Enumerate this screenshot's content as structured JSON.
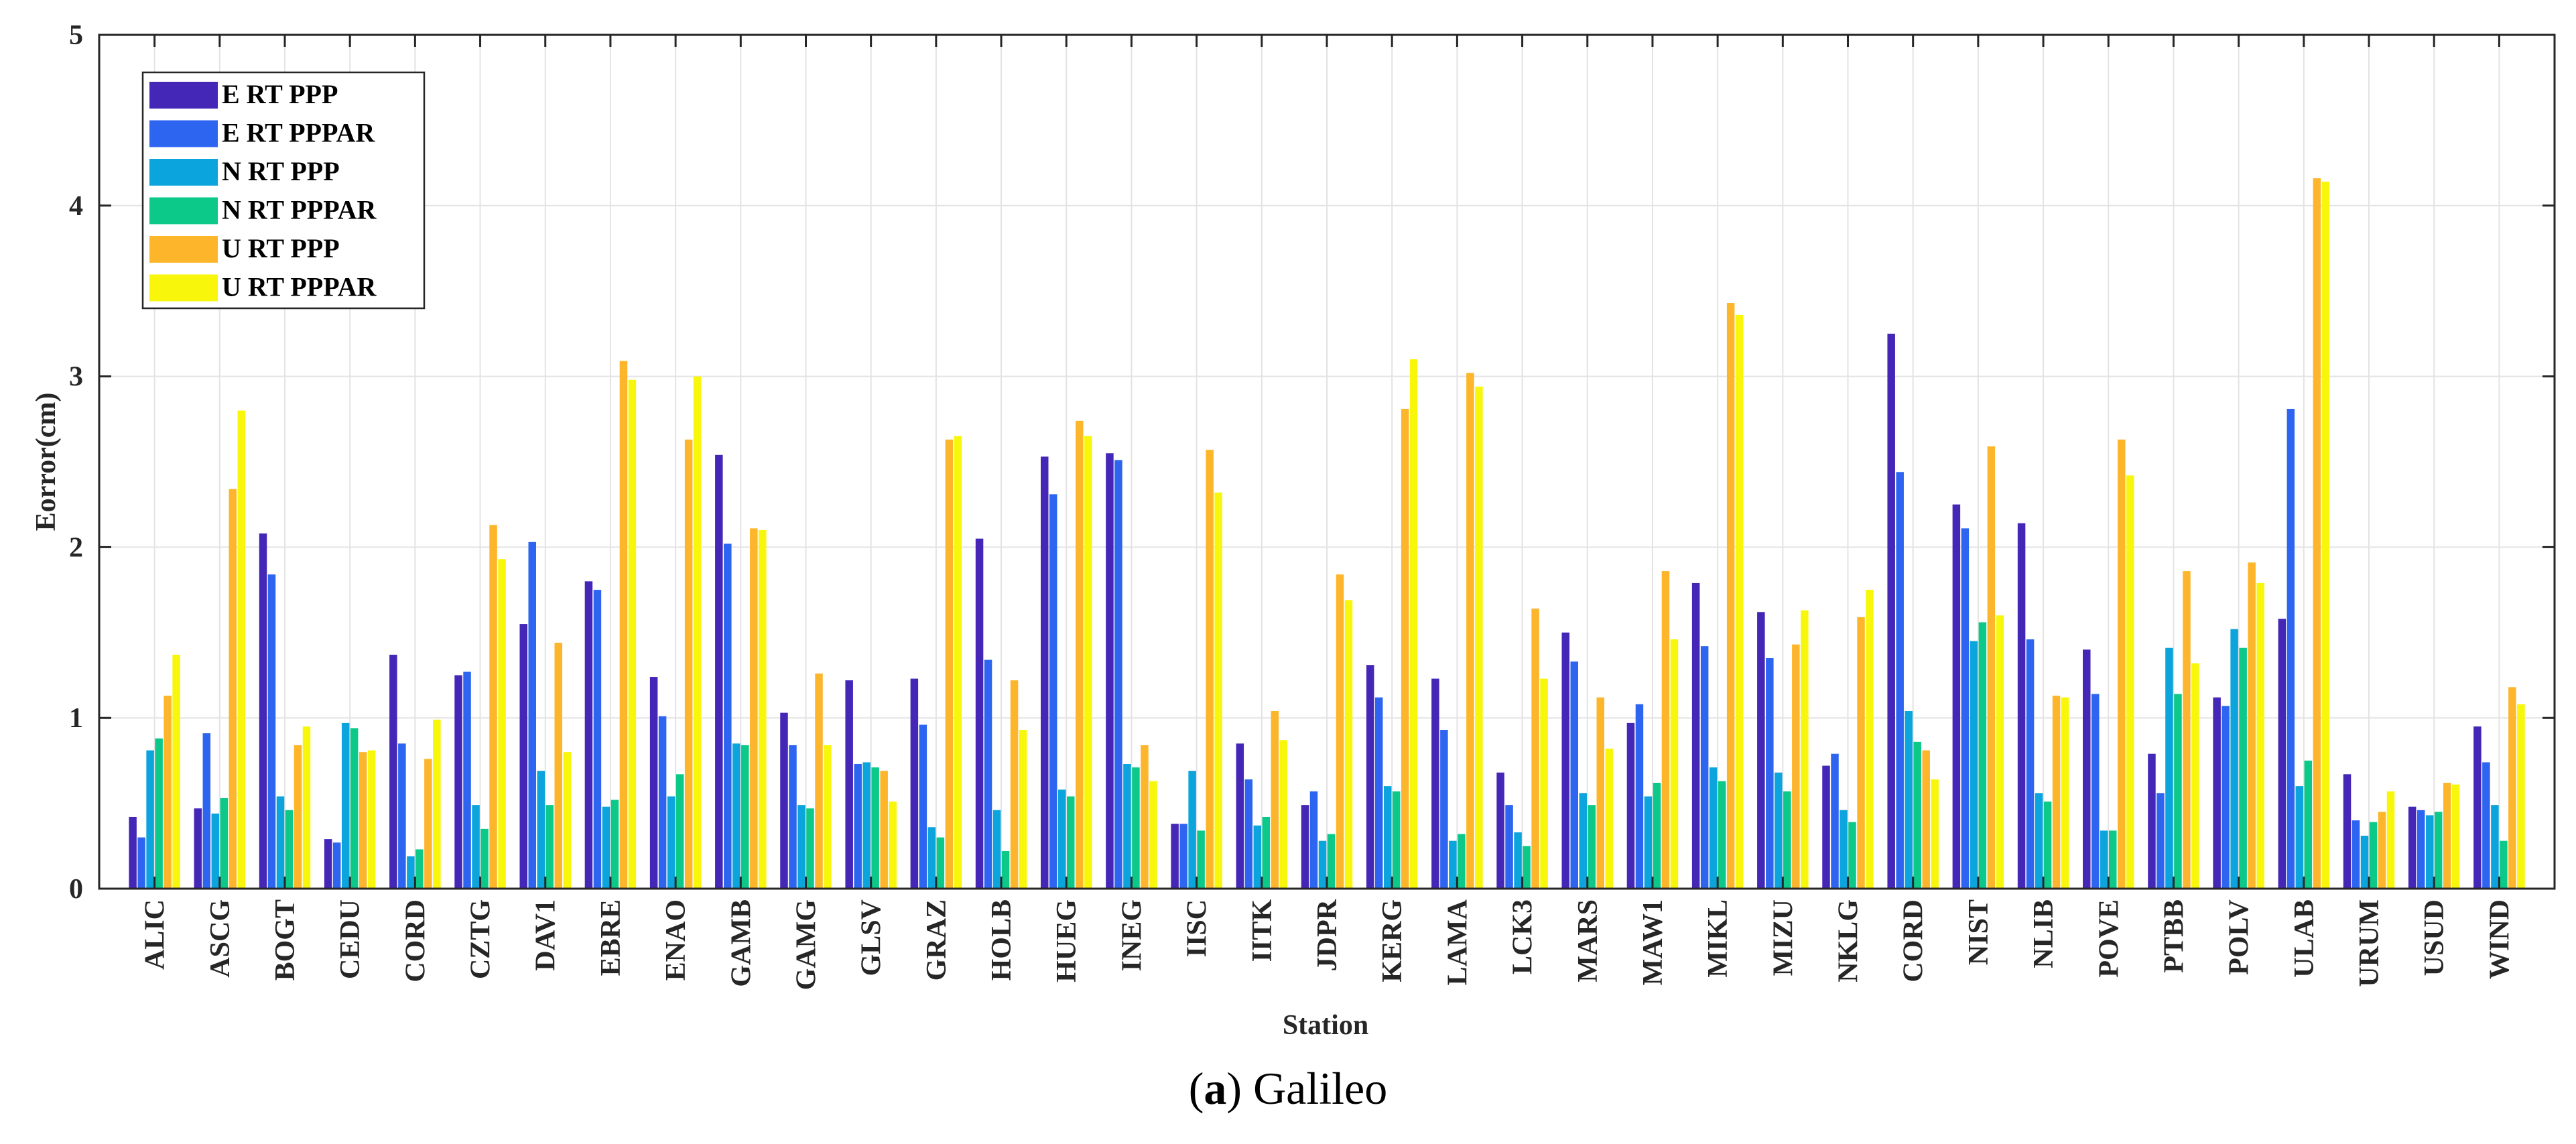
{
  "caption": {
    "letter": "a",
    "text": "Galileo",
    "open": "(",
    "close": ")"
  },
  "chart_data": {
    "type": "bar",
    "title": "",
    "xlabel": "Station",
    "ylabel": "Eorror(cm)",
    "ylim": [
      0,
      5
    ],
    "yticks": [
      "0",
      "1",
      "2",
      "3",
      "4",
      "5"
    ],
    "grid": true,
    "legend_position": "top-left",
    "categories": [
      "ALIC",
      "ASCG",
      "BOGT",
      "CEDU",
      "CORD",
      "CZTG",
      "DAV1",
      "EBRE",
      "ENAO",
      "GAMB",
      "GAMG",
      "GLSV",
      "GRAZ",
      "HOLB",
      "HUEG",
      "INEG",
      "IISC",
      "IITK",
      "JDPR",
      "KERG",
      "LAMA",
      "LCK3",
      "MARS",
      "MAW1",
      "MIKL",
      "MIZU",
      "NKLG",
      "CORD",
      "NIST",
      "NLIB",
      "POVE",
      "PTBB",
      "POLV",
      "ULAB",
      "URUM",
      "USUD",
      "WIND"
    ],
    "series": [
      {
        "name": "E RT PPP",
        "color": "#4427b6",
        "values": [
          0.42,
          0.47,
          2.08,
          0.29,
          1.37,
          1.25,
          1.55,
          1.8,
          1.24,
          2.54,
          1.03,
          1.22,
          1.23,
          2.05,
          2.53,
          2.55,
          0.38,
          0.85,
          0.49,
          1.31,
          1.23,
          0.68,
          1.5,
          0.97,
          1.79,
          1.62,
          0.72,
          3.25,
          2.25,
          2.14,
          1.4,
          0.79,
          1.12,
          1.58,
          0.67,
          0.48,
          0.95
        ]
      },
      {
        "name": "E RT PPPAR",
        "color": "#2e65f0",
        "values": [
          0.3,
          0.91,
          1.84,
          0.27,
          0.85,
          1.27,
          2.03,
          1.75,
          1.01,
          2.02,
          0.84,
          0.73,
          0.96,
          1.34,
          2.31,
          2.51,
          0.38,
          0.64,
          0.57,
          1.12,
          0.93,
          0.49,
          1.33,
          1.08,
          1.42,
          1.35,
          0.79,
          2.44,
          2.11,
          1.46,
          1.14,
          0.56,
          1.07,
          2.81,
          0.4,
          0.46,
          0.74
        ]
      },
      {
        "name": "N RT PPP",
        "color": "#0ca4dc",
        "values": [
          0.81,
          0.44,
          0.54,
          0.97,
          0.19,
          0.49,
          0.69,
          0.48,
          0.54,
          0.85,
          0.49,
          0.74,
          0.36,
          0.46,
          0.58,
          0.73,
          0.69,
          0.37,
          0.28,
          0.6,
          0.28,
          0.33,
          0.56,
          0.54,
          0.71,
          0.68,
          0.46,
          1.04,
          1.45,
          0.56,
          0.34,
          1.41,
          1.52,
          0.6,
          0.31,
          0.43,
          0.49
        ]
      },
      {
        "name": "N RT PPPAR",
        "color": "#0cc98a",
        "values": [
          0.88,
          0.53,
          0.46,
          0.94,
          0.23,
          0.35,
          0.49,
          0.52,
          0.67,
          0.84,
          0.47,
          0.71,
          0.3,
          0.22,
          0.54,
          0.71,
          0.34,
          0.42,
          0.32,
          0.57,
          0.32,
          0.25,
          0.49,
          0.62,
          0.63,
          0.57,
          0.39,
          0.86,
          1.56,
          0.51,
          0.34,
          1.14,
          1.41,
          0.75,
          0.39,
          0.45,
          0.28
        ]
      },
      {
        "name": "U RT PPP",
        "color": "#fdb62b",
        "values": [
          1.13,
          2.34,
          0.84,
          0.8,
          0.76,
          2.13,
          1.44,
          3.09,
          2.63,
          2.11,
          1.26,
          0.69,
          2.63,
          1.22,
          2.74,
          0.84,
          2.57,
          1.04,
          1.84,
          2.81,
          3.02,
          1.64,
          1.12,
          1.86,
          3.43,
          1.43,
          1.59,
          0.81,
          2.59,
          1.13,
          2.63,
          1.86,
          1.91,
          4.16,
          0.45,
          0.62,
          1.18
        ]
      },
      {
        "name": "U RT PPPAR",
        "color": "#f8f70b",
        "values": [
          1.37,
          2.8,
          0.95,
          0.81,
          0.99,
          1.93,
          0.8,
          2.98,
          3.0,
          2.1,
          0.84,
          0.51,
          2.65,
          0.93,
          2.65,
          0.63,
          2.32,
          0.87,
          1.69,
          3.1,
          2.94,
          1.23,
          0.82,
          1.46,
          3.36,
          1.63,
          1.75,
          0.64,
          1.6,
          1.12,
          2.42,
          1.32,
          1.79,
          4.14,
          0.57,
          0.61,
          1.08
        ]
      }
    ]
  }
}
